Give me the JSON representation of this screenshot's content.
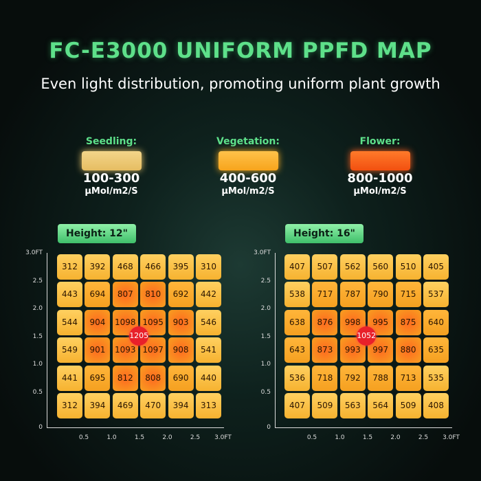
{
  "header": {
    "title": "FC-E3000 UNIFORM PPFD MAP",
    "subtitle": "Even light distribution, promoting uniform plant growth"
  },
  "legend": [
    {
      "label": "Seedling:",
      "range": "100-300",
      "unit": "μMol/m2/S"
    },
    {
      "label": "Vegetation:",
      "range": "400-600",
      "unit": "μMol/m2/S"
    },
    {
      "label": "Flower:",
      "range": "800-1000",
      "unit": "μMol/m2/S"
    }
  ],
  "maps": [
    {
      "height": "Height: 12\"",
      "center": "1205",
      "rows": [
        [
          "312",
          "392",
          "468",
          "466",
          "395",
          "310"
        ],
        [
          "443",
          "694",
          "807",
          "810",
          "692",
          "442"
        ],
        [
          "544",
          "904",
          "1098",
          "1095",
          "903",
          "546"
        ],
        [
          "549",
          "901",
          "1093",
          "1097",
          "908",
          "541"
        ],
        [
          "441",
          "695",
          "812",
          "808",
          "690",
          "440"
        ],
        [
          "312",
          "394",
          "469",
          "470",
          "394",
          "313"
        ]
      ],
      "y_labels": [
        "3.0FT",
        "2.5",
        "2.0",
        "1.5",
        "1.0",
        "0.5"
      ],
      "origin": "0",
      "x_labels": [
        "0.5",
        "1.0",
        "1.5",
        "2.0",
        "2.5",
        "3.0FT"
      ]
    },
    {
      "height": "Height: 16\"",
      "center": "1052",
      "rows": [
        [
          "407",
          "507",
          "562",
          "560",
          "510",
          "405"
        ],
        [
          "538",
          "717",
          "787",
          "790",
          "715",
          "537"
        ],
        [
          "638",
          "876",
          "998",
          "995",
          "875",
          "640"
        ],
        [
          "643",
          "873",
          "993",
          "997",
          "880",
          "635"
        ],
        [
          "536",
          "718",
          "792",
          "788",
          "713",
          "535"
        ],
        [
          "407",
          "509",
          "563",
          "564",
          "509",
          "408"
        ]
      ],
      "y_labels": [
        "3.0FT",
        "2.5",
        "2.0",
        "1.5",
        "1.0",
        "0.5"
      ],
      "origin": "0",
      "x_labels": [
        "0.5",
        "1.0",
        "1.5",
        "2.0",
        "2.5",
        "3.0FT"
      ]
    }
  ]
}
